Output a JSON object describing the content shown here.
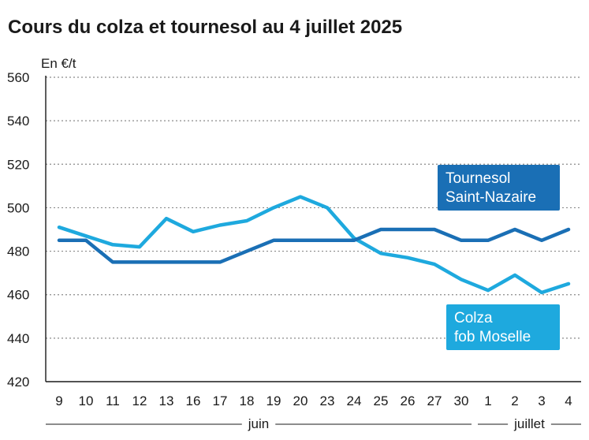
{
  "chart_data": {
    "type": "line",
    "title": "Cours du colza et tournesol au 4 juillet 2025",
    "ylabel": "En €/t",
    "ylim": [
      420,
      560
    ],
    "yticks": [
      420,
      440,
      460,
      480,
      500,
      520,
      540,
      560
    ],
    "categories": [
      "9",
      "10",
      "11",
      "12",
      "13",
      "16",
      "17",
      "18",
      "19",
      "20",
      "23",
      "24",
      "25",
      "26",
      "27",
      "30",
      "1",
      "2",
      "3",
      "4"
    ],
    "months": [
      {
        "label": "juin",
        "from": 0,
        "to": 15
      },
      {
        "label": "juillet",
        "from": 16,
        "to": 19
      }
    ],
    "series": [
      {
        "name": "Tournesol Saint-Nazaire",
        "legend_lines": [
          "Tournesol",
          "Saint-Nazaire"
        ],
        "color": "#1a6fb5",
        "values": [
          485,
          485,
          475,
          475,
          475,
          475,
          475,
          480,
          485,
          485,
          485,
          485,
          490,
          490,
          490,
          485,
          485,
          490,
          485,
          490
        ]
      },
      {
        "name": "Colza fob Moselle",
        "legend_lines": [
          "Colza",
          "fob Moselle"
        ],
        "color": "#1ea9de",
        "values": [
          491,
          487,
          483,
          482,
          495,
          489,
          492,
          494,
          500,
          505,
          500,
          486,
          479,
          477,
          474,
          467,
          462,
          469,
          461,
          465
        ]
      }
    ]
  }
}
